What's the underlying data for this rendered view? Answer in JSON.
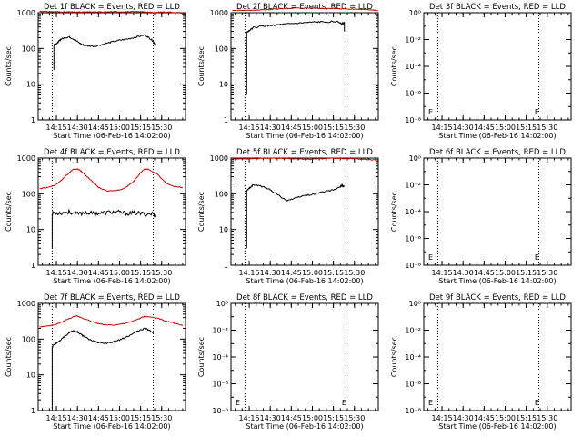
{
  "common": {
    "title_suffix": "BLACK = Events, RED = LLD",
    "xlabel": "Start Time (06-Feb-16 14:02:00)",
    "ylabel": "Counts/sec",
    "x_start_hour": 14.0333,
    "x_range": [
      14.0333,
      15.7833
    ],
    "x_ticks": [
      {
        "h": 14.25,
        "label": "14:15"
      },
      {
        "h": 14.5,
        "label": "14:30"
      },
      {
        "h": 14.75,
        "label": "14:45"
      },
      {
        "h": 15.0,
        "label": "15:00"
      },
      {
        "h": 15.25,
        "label": "15:15"
      },
      {
        "h": 15.5,
        "label": "15:30"
      }
    ],
    "vlines": [
      14.2,
      15.4
    ],
    "colors": {
      "events": "#000000",
      "lld": "#cc0000",
      "axes": "#000000"
    }
  },
  "chart_data": [
    {
      "type": "line",
      "title": "Det 1f BLACK = Events, RED = LLD",
      "yscale": "log",
      "ylim": [
        1,
        1000
      ],
      "y_ticks": [
        {
          "v": 1,
          "label": "1"
        },
        {
          "v": 10,
          "label": "10"
        },
        {
          "v": 100,
          "label": "100"
        },
        {
          "v": 1000,
          "label": "1000"
        }
      ],
      "series": [
        {
          "role": "lld",
          "x": [
            14.05,
            14.1,
            14.2,
            14.3,
            14.4,
            14.5,
            14.6,
            14.75,
            14.9,
            15.0,
            15.1,
            15.2,
            15.3,
            15.4,
            15.5,
            15.6,
            15.7,
            15.78
          ],
          "values": [
            1100,
            1080,
            1070,
            1060,
            1050,
            1040,
            1040,
            1050,
            1060,
            1060,
            1060,
            1060,
            1070,
            1000,
            1050,
            1040,
            1010,
            950
          ]
        },
        {
          "role": "events",
          "x": [
            14.22,
            14.22,
            14.26,
            14.28,
            14.3,
            14.35,
            14.4,
            14.45,
            14.5,
            14.55,
            14.6,
            14.7,
            14.8,
            14.9,
            15.0,
            15.1,
            15.2,
            15.3,
            15.35,
            15.4,
            15.42
          ],
          "values": [
            25,
            130,
            140,
            160,
            180,
            200,
            210,
            185,
            155,
            130,
            120,
            115,
            130,
            150,
            170,
            185,
            210,
            240,
            200,
            160,
            130
          ]
        }
      ],
      "annotations": []
    },
    {
      "type": "line",
      "title": "Det 2f BLACK = Events, RED = LLD",
      "yscale": "log",
      "ylim": [
        1,
        1000
      ],
      "y_ticks": [
        {
          "v": 1,
          "label": "1"
        },
        {
          "v": 10,
          "label": "10"
        },
        {
          "v": 100,
          "label": "100"
        },
        {
          "v": 1000,
          "label": "1000"
        }
      ],
      "series": [
        {
          "role": "lld",
          "x": [
            14.05,
            14.2,
            14.35,
            14.5,
            14.65,
            14.8,
            14.95,
            15.1,
            15.25,
            15.4,
            15.55,
            15.7,
            15.78
          ],
          "values": [
            1150,
            1160,
            1180,
            1230,
            1300,
            1350,
            1340,
            1320,
            1300,
            1290,
            1250,
            1200,
            1160
          ]
        },
        {
          "role": "events",
          "x": [
            14.22,
            14.22,
            14.26,
            14.3,
            14.4,
            14.5,
            14.6,
            14.7,
            14.8,
            14.9,
            15.0,
            15.1,
            15.2,
            15.3,
            15.35,
            15.38,
            15.38
          ],
          "values": [
            5,
            280,
            330,
            380,
            420,
            440,
            460,
            480,
            500,
            520,
            540,
            550,
            560,
            560,
            500,
            520,
            300
          ]
        }
      ],
      "annotations": []
    },
    {
      "type": "line",
      "title": "Det 3f BLACK = Events, RED = LLD",
      "yscale": "log",
      "ylim": [
        1e-08,
        1
      ],
      "y_ticks": [
        {
          "v": 1e-08,
          "label": "10⁻⁸"
        },
        {
          "v": 1e-06,
          "label": "10⁻⁶"
        },
        {
          "v": 0.0001,
          "label": "10⁻⁴"
        },
        {
          "v": 0.01,
          "label": "10⁻²"
        },
        {
          "v": 1,
          "label": "10⁰"
        }
      ],
      "series": [],
      "annotations": [
        {
          "text": "E",
          "pos": "bottom-left"
        },
        {
          "text": "E",
          "pos": "bottom-right"
        }
      ]
    },
    {
      "type": "line",
      "title": "Det 4f BLACK = Events, RED = LLD",
      "yscale": "log",
      "ylim": [
        1,
        1000
      ],
      "y_ticks": [
        {
          "v": 1,
          "label": "1"
        },
        {
          "v": 10,
          "label": "10"
        },
        {
          "v": 100,
          "label": "100"
        },
        {
          "v": 1000,
          "label": "1000"
        }
      ],
      "series": [
        {
          "role": "lld",
          "x": [
            14.05,
            14.15,
            14.25,
            14.35,
            14.45,
            14.5,
            14.55,
            14.65,
            14.75,
            14.85,
            14.95,
            15.05,
            15.15,
            15.25,
            15.3,
            15.35,
            15.45,
            15.55,
            15.65,
            15.75
          ],
          "values": [
            140,
            150,
            180,
            300,
            480,
            500,
            420,
            250,
            150,
            120,
            120,
            140,
            200,
            380,
            500,
            480,
            350,
            200,
            160,
            150
          ]
        },
        {
          "role": "events",
          "x": [
            14.2,
            14.2,
            14.21,
            14.3,
            14.4,
            14.5,
            14.6,
            14.7,
            14.8,
            14.9,
            15.0,
            15.1,
            15.2,
            15.3,
            15.4,
            15.42
          ],
          "values": [
            3,
            28,
            30,
            29,
            31,
            27,
            30,
            28,
            29,
            31,
            30,
            28,
            29,
            27,
            28,
            24
          ]
        }
      ],
      "annotations": []
    },
    {
      "type": "line",
      "title": "Det 5f BLACK = Events, RED = LLD",
      "yscale": "log",
      "ylim": [
        1,
        1000
      ],
      "y_ticks": [
        {
          "v": 1,
          "label": "1"
        },
        {
          "v": 10,
          "label": "10"
        },
        {
          "v": 100,
          "label": "100"
        },
        {
          "v": 1000,
          "label": "1000"
        }
      ],
      "series": [
        {
          "role": "lld",
          "x": [
            14.05,
            14.2,
            14.35,
            14.5,
            14.65,
            14.8,
            14.95,
            15.1,
            15.25,
            15.4,
            15.55,
            15.7,
            15.78
          ],
          "values": [
            950,
            940,
            960,
            1000,
            980,
            950,
            930,
            960,
            1000,
            980,
            940,
            900,
            880
          ]
        },
        {
          "role": "events",
          "x": [
            14.22,
            14.22,
            14.26,
            14.3,
            14.4,
            14.5,
            14.6,
            14.7,
            14.8,
            14.9,
            15.0,
            15.1,
            15.2,
            15.3,
            15.35,
            15.38
          ],
          "values": [
            3,
            120,
            150,
            180,
            160,
            130,
            90,
            65,
            75,
            90,
            95,
            110,
            120,
            140,
            170,
            160
          ]
        }
      ],
      "annotations": []
    },
    {
      "type": "line",
      "title": "Det 6f BLACK = Events, RED = LLD",
      "yscale": "log",
      "ylim": [
        1e-08,
        1
      ],
      "y_ticks": [
        {
          "v": 1e-08,
          "label": "10⁻⁸"
        },
        {
          "v": 1e-06,
          "label": "10⁻⁶"
        },
        {
          "v": 0.0001,
          "label": "10⁻⁴"
        },
        {
          "v": 0.01,
          "label": "10⁻²"
        },
        {
          "v": 1,
          "label": "10⁰"
        }
      ],
      "series": [],
      "annotations": [
        {
          "text": "E",
          "pos": "bottom-left"
        },
        {
          "text": "E",
          "pos": "bottom-right"
        }
      ]
    },
    {
      "type": "line",
      "title": "Det 7f BLACK = Events, RED = LLD",
      "yscale": "log",
      "ylim": [
        1,
        1000
      ],
      "y_ticks": [
        {
          "v": 1,
          "label": "1"
        },
        {
          "v": 10,
          "label": "10"
        },
        {
          "v": 100,
          "label": "100"
        },
        {
          "v": 1000,
          "label": "1000"
        }
      ],
      "series": [
        {
          "role": "lld",
          "x": [
            14.05,
            14.15,
            14.25,
            14.35,
            14.45,
            14.5,
            14.55,
            14.65,
            14.75,
            14.85,
            14.95,
            15.05,
            15.15,
            15.25,
            15.3,
            15.35,
            15.45,
            15.55,
            15.65,
            15.75
          ],
          "values": [
            220,
            230,
            260,
            330,
            420,
            440,
            400,
            320,
            270,
            250,
            250,
            270,
            310,
            390,
            430,
            420,
            380,
            320,
            280,
            240
          ]
        },
        {
          "role": "events",
          "x": [
            14.2,
            14.2,
            14.22,
            14.26,
            14.3,
            14.35,
            14.4,
            14.45,
            14.5,
            14.55,
            14.6,
            14.7,
            14.8,
            14.9,
            15.0,
            15.1,
            15.2,
            15.3,
            15.35,
            15.4
          ],
          "values": [
            1,
            60,
            70,
            80,
            95,
            120,
            150,
            170,
            160,
            130,
            110,
            85,
            75,
            80,
            95,
            120,
            160,
            200,
            180,
            150
          ]
        }
      ],
      "annotations": []
    },
    {
      "type": "line",
      "title": "Det 8f BLACK = Events, RED = LLD",
      "yscale": "log",
      "ylim": [
        1e-08,
        1
      ],
      "y_ticks": [
        {
          "v": 1e-08,
          "label": "10⁻⁸"
        },
        {
          "v": 1e-06,
          "label": "10⁻⁶"
        },
        {
          "v": 0.0001,
          "label": "10⁻⁴"
        },
        {
          "v": 0.01,
          "label": "10⁻²"
        },
        {
          "v": 1,
          "label": "10⁰"
        }
      ],
      "series": [],
      "annotations": [
        {
          "text": "E",
          "pos": "bottom-left"
        },
        {
          "text": "E",
          "pos": "bottom-right"
        }
      ]
    },
    {
      "type": "line",
      "title": "Det 9f BLACK = Events, RED = LLD",
      "yscale": "log",
      "ylim": [
        1e-08,
        1
      ],
      "y_ticks": [
        {
          "v": 1e-08,
          "label": "10⁻⁸"
        },
        {
          "v": 1e-06,
          "label": "10⁻⁶"
        },
        {
          "v": 0.0001,
          "label": "10⁻⁴"
        },
        {
          "v": 0.01,
          "label": "10⁻²"
        },
        {
          "v": 1,
          "label": "10⁰"
        }
      ],
      "series": [],
      "annotations": [
        {
          "text": "E",
          "pos": "bottom-left"
        },
        {
          "text": "E",
          "pos": "bottom-right"
        }
      ]
    }
  ]
}
